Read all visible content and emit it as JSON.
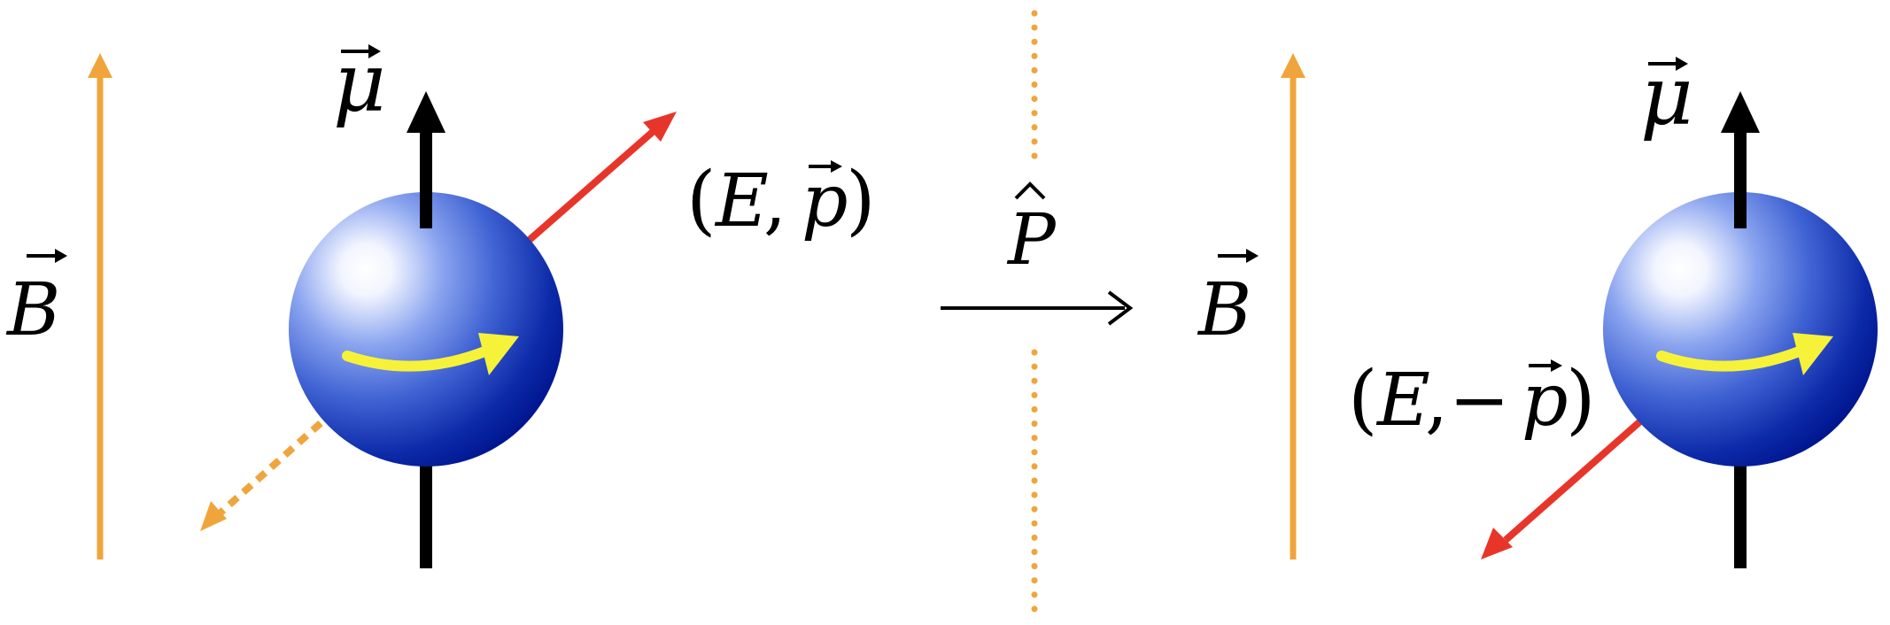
{
  "left_panel": {
    "field_label": "B",
    "moment_label": "μ",
    "momentum_label": {
      "open": "(",
      "energy": "E",
      "comma": ",",
      "sign": "",
      "momentum": "p",
      "close": ")"
    }
  },
  "operator": {
    "label": "P"
  },
  "right_panel": {
    "field_label": "B",
    "moment_label": "μ",
    "momentum_label": {
      "open": "(",
      "energy": "E",
      "comma": ",",
      "sign": "−",
      "momentum": "p",
      "close": ")"
    }
  },
  "colors": {
    "field_arrow": "#f0a53c",
    "moment_arrow": "#000000",
    "momentum_arrow": "#e8352a",
    "spin_arrow": "#f6f23a",
    "sphere_dark": "#00158f",
    "sphere_mid": "#3f62d3",
    "mirror_line": "#f0a53c"
  }
}
